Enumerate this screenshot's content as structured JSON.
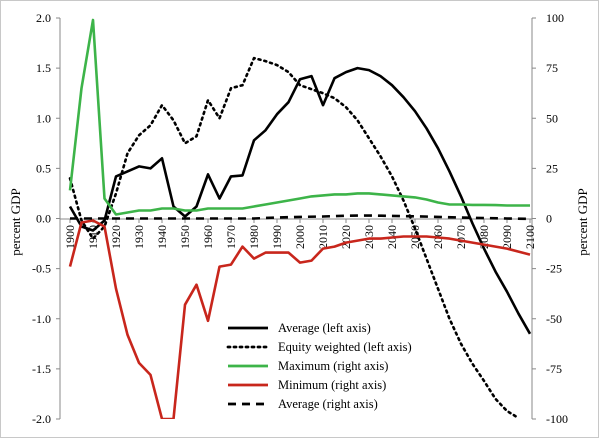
{
  "chart_data": {
    "type": "line",
    "xlabel": "",
    "ylabel": "percent GDP",
    "y2label": "percent GDP",
    "ylim": [
      -2.0,
      2.0
    ],
    "y2lim": [
      -100,
      100
    ],
    "yticks": [
      "2.0",
      "1.5",
      "1.0",
      "0.5",
      "0.0",
      "-0.5",
      "-1.0",
      "-1.5",
      "-2.0"
    ],
    "y2ticks": [
      "100",
      "75",
      "50",
      "25",
      "0",
      "-25",
      "-50",
      "-75",
      "-100"
    ],
    "xticks": [
      "1900",
      "1910",
      "1920",
      "1930",
      "1940",
      "1950",
      "1960",
      "1970",
      "1980",
      "1990",
      "2000",
      "2010",
      "2020",
      "2030",
      "2040",
      "2050",
      "2060",
      "2070",
      "2080",
      "2090",
      "2100"
    ],
    "grid": false,
    "legend_position": "bottom-right",
    "series": [
      {
        "name": "Average (left axis)",
        "axis": "left",
        "color": "#000000",
        "style": "solid",
        "x": [
          1900,
          1905,
          1910,
          1915,
          1920,
          1925,
          1930,
          1935,
          1940,
          1945,
          1950,
          1955,
          1960,
          1965,
          1970,
          1975,
          1980,
          1985,
          1990,
          1995,
          2000,
          2005,
          2010,
          2015,
          2020,
          2025,
          2030,
          2035,
          2040,
          2045,
          2050,
          2055,
          2060,
          2065,
          2070,
          2075,
          2080,
          2085,
          2090,
          2095,
          2100
        ],
        "y": [
          0.12,
          -0.08,
          -0.12,
          -0.02,
          0.42,
          0.47,
          0.52,
          0.5,
          0.6,
          0.12,
          0.02,
          0.12,
          0.44,
          0.2,
          0.42,
          0.43,
          0.78,
          0.88,
          1.04,
          1.16,
          1.39,
          1.42,
          1.13,
          1.4,
          1.46,
          1.5,
          1.48,
          1.42,
          1.33,
          1.21,
          1.07,
          0.9,
          0.7,
          0.47,
          0.22,
          -0.05,
          -0.3,
          -0.53,
          -0.73,
          -0.95,
          -1.15
        ]
      },
      {
        "name": "Equity weighted (left axis)",
        "axis": "left",
        "color": "#000000",
        "style": "dotted",
        "x": [
          1900,
          1905,
          1910,
          1915,
          1920,
          1925,
          1930,
          1935,
          1940,
          1945,
          1950,
          1955,
          1960,
          1965,
          1970,
          1975,
          1980,
          1985,
          1990,
          1995,
          2000,
          2005,
          2010,
          2015,
          2020,
          2025,
          2030,
          2035,
          2040,
          2045,
          2050,
          2055,
          2060,
          2065,
          2070,
          2075,
          2080,
          2085,
          2090,
          2095
        ],
        "y": [
          0.4,
          -0.02,
          -0.2,
          -0.08,
          0.25,
          0.65,
          0.83,
          0.93,
          1.13,
          0.98,
          0.75,
          0.82,
          1.18,
          1.0,
          1.3,
          1.33,
          1.6,
          1.57,
          1.53,
          1.46,
          1.33,
          1.29,
          1.25,
          1.2,
          1.11,
          0.98,
          0.8,
          0.62,
          0.42,
          0.18,
          -0.1,
          -0.4,
          -0.7,
          -1.0,
          -1.25,
          -1.45,
          -1.62,
          -1.8,
          -1.92,
          -1.99
        ]
      },
      {
        "name": "Maximum (right axis)",
        "axis": "right",
        "color": "#3db449",
        "style": "solid",
        "x": [
          1900,
          1905,
          1910,
          1915,
          1920,
          1925,
          1930,
          1935,
          1940,
          1945,
          1950,
          1955,
          1960,
          1965,
          1970,
          1975,
          1980,
          1985,
          1990,
          1995,
          2000,
          2005,
          2010,
          2015,
          2020,
          2025,
          2030,
          2035,
          2040,
          2045,
          2050,
          2055,
          2060,
          2065,
          2070,
          2075,
          2080,
          2085,
          2090,
          2095,
          2100
        ],
        "y": [
          14,
          65,
          99,
          10,
          2,
          3,
          4,
          4,
          5,
          5,
          4,
          4,
          5,
          5,
          5,
          5,
          6,
          7,
          8,
          9,
          10,
          11,
          11.5,
          12,
          12,
          12.5,
          12.5,
          12,
          11.5,
          11,
          10.5,
          9.5,
          8,
          7,
          7,
          6.8,
          6.8,
          6.7,
          6.5,
          6.5,
          6.5
        ]
      },
      {
        "name": "Minimum (right axis)",
        "axis": "right",
        "color": "#c8261c",
        "style": "solid",
        "x": [
          1900,
          1905,
          1910,
          1915,
          1920,
          1925,
          1930,
          1935,
          1940,
          1945,
          1950,
          1955,
          1960,
          1965,
          1970,
          1975,
          1980,
          1985,
          1990,
          1995,
          2000,
          2005,
          2010,
          2015,
          2020,
          2025,
          2030,
          2035,
          2040,
          2045,
          2050,
          2055,
          2060,
          2065,
          2070,
          2075,
          2080,
          2085,
          2090,
          2095,
          2100
        ],
        "y": [
          -24,
          -2,
          -1,
          -4,
          -35,
          -58,
          -72,
          -78,
          -100,
          -100,
          -43,
          -33,
          -51,
          -24,
          -23,
          -14,
          -20,
          -17,
          -17,
          -17,
          -22,
          -21,
          -15,
          -14,
          -12,
          -11,
          -10,
          -10,
          -9.5,
          -9,
          -9,
          -9,
          -9.5,
          -10,
          -11,
          -12,
          -13,
          -14,
          -15,
          -16.5,
          -18
        ]
      },
      {
        "name": "Average (right axis)",
        "axis": "right",
        "color": "#000000",
        "style": "dashed",
        "x": [
          1900,
          1910,
          1920,
          1930,
          1940,
          1950,
          1960,
          1970,
          1980,
          1990,
          2000,
          2010,
          2020,
          2030,
          2040,
          2050,
          2060,
          2070,
          2080,
          2090,
          2100
        ],
        "y": [
          0,
          0,
          0,
          0,
          0,
          0,
          0,
          0,
          0,
          0.5,
          0.8,
          1,
          1.4,
          1.5,
          1.3,
          1.1,
          0.8,
          0.5,
          0.2,
          0,
          -0.2
        ]
      }
    ]
  }
}
